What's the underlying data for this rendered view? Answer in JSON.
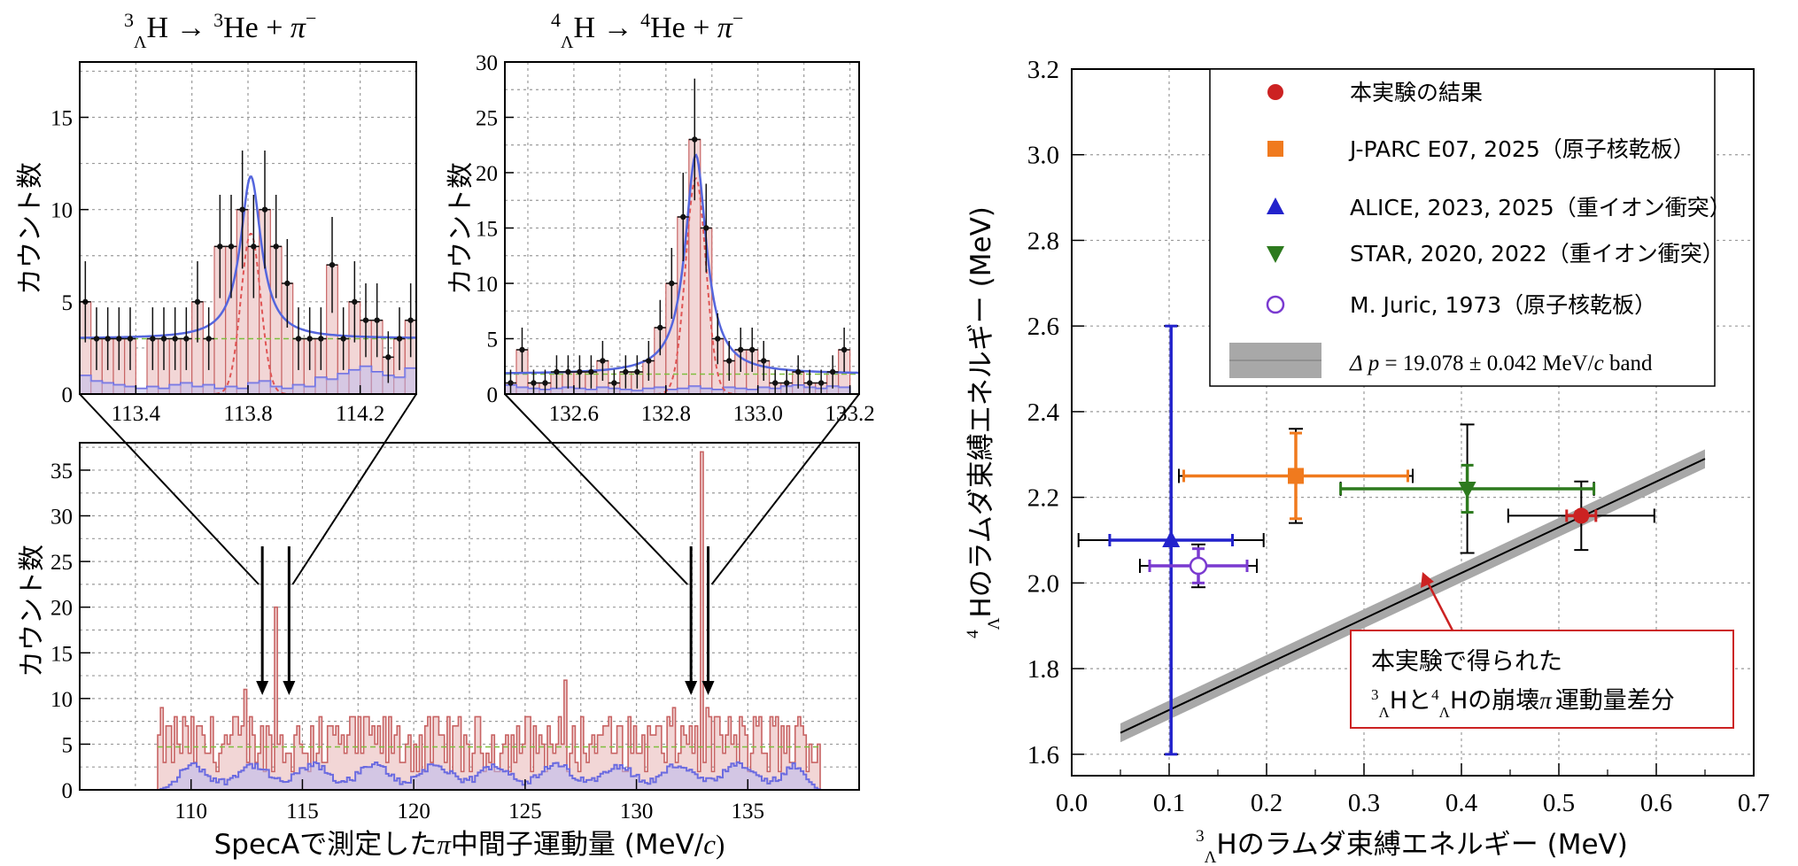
{
  "colors": {
    "hist_fill": "#f2d6d6",
    "hist_line": "#c86464",
    "bg_line": "#6b6be0",
    "fit_line": "#5566dd",
    "signal_line": "#e05555",
    "flat_line": "#7fbf3f",
    "data_point": "#111111",
    "our_result": "#cc2222",
    "jparc": "#f07a1e",
    "alice": "#2222cc",
    "star": "#2d7a1e",
    "juric": "#7a3ad0",
    "band": "#a8a8a8",
    "annotation_border": "#cc2222"
  },
  "chart_data": [
    {
      "id": "h3_inset",
      "type": "bar",
      "title": "³ΛH → ³He + π⁻",
      "title_parts": {
        "sup1": "3",
        "sub1": "Λ",
        "rest1": "H → ",
        "sup2": "3",
        "rest2": "He + ",
        "pi": "π",
        "minus": "−"
      },
      "ylabel": "カウント数",
      "xlim": [
        113.2,
        114.4
      ],
      "ylim": [
        0,
        18
      ],
      "xticks": [
        113.4,
        113.8,
        114.2
      ],
      "xtick_labels": [
        "113.4",
        "113.8",
        "114.2"
      ],
      "yticks": [
        0,
        5,
        10,
        15
      ],
      "ytick_labels": [
        "0",
        "5",
        "10",
        "15"
      ],
      "bin_width": 0.04,
      "bins_left": [
        113.2,
        113.24,
        113.28,
        113.32,
        113.36,
        113.4,
        113.44,
        113.48,
        113.52,
        113.56,
        113.6,
        113.64,
        113.68,
        113.72,
        113.76,
        113.8,
        113.84,
        113.88,
        113.92,
        113.96,
        114.0,
        114.04,
        114.08,
        114.12,
        114.16,
        114.2,
        114.24,
        114.28,
        114.32,
        114.36
      ],
      "counts": [
        5,
        3,
        3,
        3,
        3,
        0,
        3,
        3,
        3,
        3,
        5,
        3,
        8,
        8,
        10,
        8,
        10,
        8,
        6,
        3,
        3,
        3,
        7,
        3,
        5,
        4,
        4,
        2,
        3,
        4
      ],
      "errors": [
        2.2,
        1.7,
        1.7,
        1.7,
        1.7,
        0,
        1.7,
        1.7,
        1.7,
        1.7,
        2.2,
        1.7,
        2.8,
        2.8,
        3.2,
        2.8,
        3.2,
        2.8,
        2.4,
        1.7,
        1.7,
        1.7,
        2.6,
        1.7,
        2.2,
        2.0,
        2.0,
        1.4,
        1.7,
        2.0
      ],
      "background_level": 3.0,
      "signal": {
        "mean": 113.81,
        "sigma": 0.035,
        "amplitude": 8.7
      },
      "fit": {
        "mean": 113.81,
        "gamma": 0.045,
        "amplitude": 8.8
      },
      "background_hist": [
        1.0,
        0.7,
        0.6,
        0.5,
        0.4,
        0.3,
        0.4,
        0.3,
        0.5,
        0.6,
        0.4,
        0.5,
        0.3,
        0.4,
        0.3,
        0.6,
        0.7,
        0.4,
        0.3,
        0.5,
        0.4,
        0.9,
        0.8,
        1.1,
        1.3,
        1.5,
        1.2,
        1.0,
        0.9,
        1.4
      ]
    },
    {
      "id": "h4_inset",
      "type": "bar",
      "title": "⁴ΛH → ⁴He + π⁻",
      "title_parts": {
        "sup1": "4",
        "sub1": "Λ",
        "rest1": "H → ",
        "sup2": "4",
        "rest2": "He + ",
        "pi": "π",
        "minus": "−"
      },
      "ylabel": "カウント数",
      "xlim": [
        132.45,
        133.22
      ],
      "ylim": [
        0,
        30
      ],
      "xticks": [
        132.6,
        132.8,
        133.0,
        133.2
      ],
      "xtick_labels": [
        "132.6",
        "132.8",
        "133.0",
        "133.2"
      ],
      "yticks": [
        0,
        5,
        10,
        15,
        20,
        25,
        30
      ],
      "ytick_labels": [
        "0",
        "5",
        "10",
        "15",
        "20",
        "25",
        "30"
      ],
      "bin_width": 0.025,
      "bins_left": [
        132.45,
        132.475,
        132.5,
        132.525,
        132.55,
        132.575,
        132.6,
        132.625,
        132.65,
        132.675,
        132.7,
        132.725,
        132.75,
        132.775,
        132.8,
        132.825,
        132.85,
        132.875,
        132.9,
        132.925,
        132.95,
        132.975,
        133.0,
        133.025,
        133.05,
        133.075,
        133.1,
        133.125,
        133.15,
        133.175,
        133.2
      ],
      "counts": [
        1,
        4,
        1,
        1,
        2,
        2,
        2,
        2,
        3,
        1,
        2,
        2,
        3,
        6,
        10,
        16,
        23,
        15,
        5,
        3,
        4,
        4,
        3,
        1,
        1,
        2,
        1,
        1,
        2,
        4,
        0
      ],
      "errors": [
        1.2,
        2.0,
        1.2,
        1.2,
        1.5,
        1.5,
        1.5,
        1.5,
        1.8,
        1.2,
        1.5,
        1.5,
        1.8,
        2.5,
        3.2,
        4.0,
        5.5,
        4.0,
        2.3,
        1.8,
        2.0,
        2.0,
        1.8,
        1.2,
        1.2,
        1.5,
        1.2,
        1.2,
        1.5,
        2.0,
        0
      ],
      "background_level": 1.8,
      "signal": {
        "mean": 132.865,
        "sigma": 0.022,
        "amplitude": 19.5
      },
      "fit": {
        "mean": 132.865,
        "gamma": 0.028,
        "amplitude": 19.8
      },
      "background_hist": [
        0.8,
        0.6,
        0.5,
        0.4,
        0.5,
        0.6,
        0.5,
        0.4,
        0.6,
        0.5,
        0.4,
        0.3,
        0.5,
        0.6,
        0.4,
        0.5,
        0.7,
        0.5,
        0.4,
        0.6,
        0.5,
        0.4,
        0.6,
        0.5,
        0.7,
        0.8,
        0.6,
        0.5,
        0.7,
        0.6,
        0.0
      ]
    },
    {
      "id": "spectrum",
      "type": "bar",
      "title": "",
      "ylabel": "カウント数",
      "xlabel_jp": "SpecAで測定した",
      "xlabel_pi": "π",
      "xlabel_jp2": "中間子運動量 (MeV/",
      "xlabel_c": "c",
      "xlabel_close": ")",
      "xlim": [
        105,
        140
      ],
      "ylim": [
        0,
        38
      ],
      "xticks": [
        110,
        115,
        120,
        125,
        130,
        135
      ],
      "xtick_labels": [
        "110",
        "115",
        "120",
        "125",
        "130",
        "135"
      ],
      "yticks": [
        0,
        5,
        10,
        15,
        20,
        25,
        30,
        35
      ],
      "ytick_labels": [
        "0",
        "5",
        "10",
        "15",
        "20",
        "25",
        "30",
        "35"
      ],
      "signal_range": [
        108.5,
        138.2
      ],
      "arrows_h3": [
        113.2,
        114.4
      ],
      "arrows_h4": [
        132.45,
        133.22
      ],
      "peaks": [
        {
          "x": 113.8,
          "height": 20
        },
        {
          "x": 132.86,
          "height": 37
        }
      ],
      "mean_level": 4.7,
      "background_level": 1.8
    },
    {
      "id": "binding_energy",
      "type": "scatter",
      "xlabel_sup": "3",
      "xlabel_sub": "Λ",
      "xlabel_text": "Hのラムダ束縛エネルギー (MeV)",
      "ylabel_sup": "4",
      "ylabel_sub": "Λ",
      "ylabel_text": "Hのラムダ束縛エネルギー (MeV)",
      "xlim": [
        0.0,
        0.7
      ],
      "ylim": [
        1.55,
        3.2
      ],
      "xticks": [
        0.0,
        0.1,
        0.2,
        0.3,
        0.4,
        0.5,
        0.6,
        0.7
      ],
      "xtick_labels": [
        "0.0",
        "0.1",
        "0.2",
        "0.3",
        "0.4",
        "0.5",
        "0.6",
        "0.7"
      ],
      "yticks": [
        1.6,
        1.8,
        2.0,
        2.2,
        2.4,
        2.6,
        2.8,
        3.0,
        3.2
      ],
      "ytick_labels": [
        "1.6",
        "1.8",
        "2.0",
        "2.2",
        "2.4",
        "2.6",
        "2.8",
        "3.0",
        "3.2"
      ],
      "band": {
        "x": [
          0.05,
          0.65
        ],
        "y": [
          1.65,
          2.29
        ],
        "half_width_y": 0.022
      },
      "points": [
        {
          "name": "本実験の結果",
          "x": 0.523,
          "y": 2.157,
          "xerr_stat": 0.015,
          "yerr_stat": 0.01,
          "xerr_sys": 0.075,
          "yerr_sys": 0.08,
          "marker": "circle",
          "color_key": "our_result"
        },
        {
          "name": "J-PARC E07, 2025（原子核乾板）",
          "x": 0.23,
          "y": 2.25,
          "xerr_stat": 0.115,
          "yerr_stat": 0.1,
          "xerr_sys": 0.12,
          "yerr_sys": 0.11,
          "marker": "square",
          "color_key": "jparc"
        },
        {
          "name": "ALICE, 2023, 2025（重イオン衝突）",
          "x": 0.102,
          "y": 2.1,
          "xerr_stat": 0.063,
          "yerr_stat": 0.5,
          "xerr_sys": 0.095,
          "yerr_sys": 0.5,
          "marker": "triangle-up",
          "color_key": "alice"
        },
        {
          "name": "STAR, 2020, 2022（重イオン衝突）",
          "x": 0.406,
          "y": 2.22,
          "xerr_stat": 0.13,
          "yerr_stat": 0.055,
          "xerr_sys": 0.13,
          "yerr_sys": 0.15,
          "marker": "triangle-down",
          "color_key": "star"
        },
        {
          "name": "M. Juric, 1973（原子核乾板）",
          "x": 0.13,
          "y": 2.04,
          "xerr_stat": 0.05,
          "yerr_stat": 0.04,
          "xerr_sys": 0.06,
          "yerr_sys": 0.05,
          "marker": "circle-open",
          "color_key": "juric"
        }
      ],
      "legend": [
        {
          "label": "本実験の結果",
          "marker": "circle",
          "color_key": "our_result"
        },
        {
          "label": "J-PARC E07, 2025（原子核乾板）",
          "marker": "square",
          "color_key": "jparc"
        },
        {
          "label": "ALICE, 2023, 2025（重イオン衝突）",
          "marker": "triangle-up",
          "color_key": "alice"
        },
        {
          "label": "STAR, 2020, 2022（重イオン衝突）",
          "marker": "triangle-down",
          "color_key": "star"
        },
        {
          "label": "M. Juric, 1973（原子核乾板）",
          "marker": "circle-open",
          "color_key": "juric"
        }
      ],
      "legend_band": {
        "delta": "Δ",
        "p": "p",
        "mid": " = 19.078 ± 0.042 MeV/",
        "c": "c",
        "tail": " band"
      },
      "legend_position": "top-right",
      "annotation": {
        "line1": "本実験で得られた",
        "l2_sup1": "3",
        "l2_sub1": "Λ",
        "l2_a": "Hと",
        "l2_sup2": "4",
        "l2_sub2": "Λ",
        "l2_b": "Hの崩壊",
        "l2_pi": "π",
        "l2_c": "運動量差分"
      }
    }
  ]
}
